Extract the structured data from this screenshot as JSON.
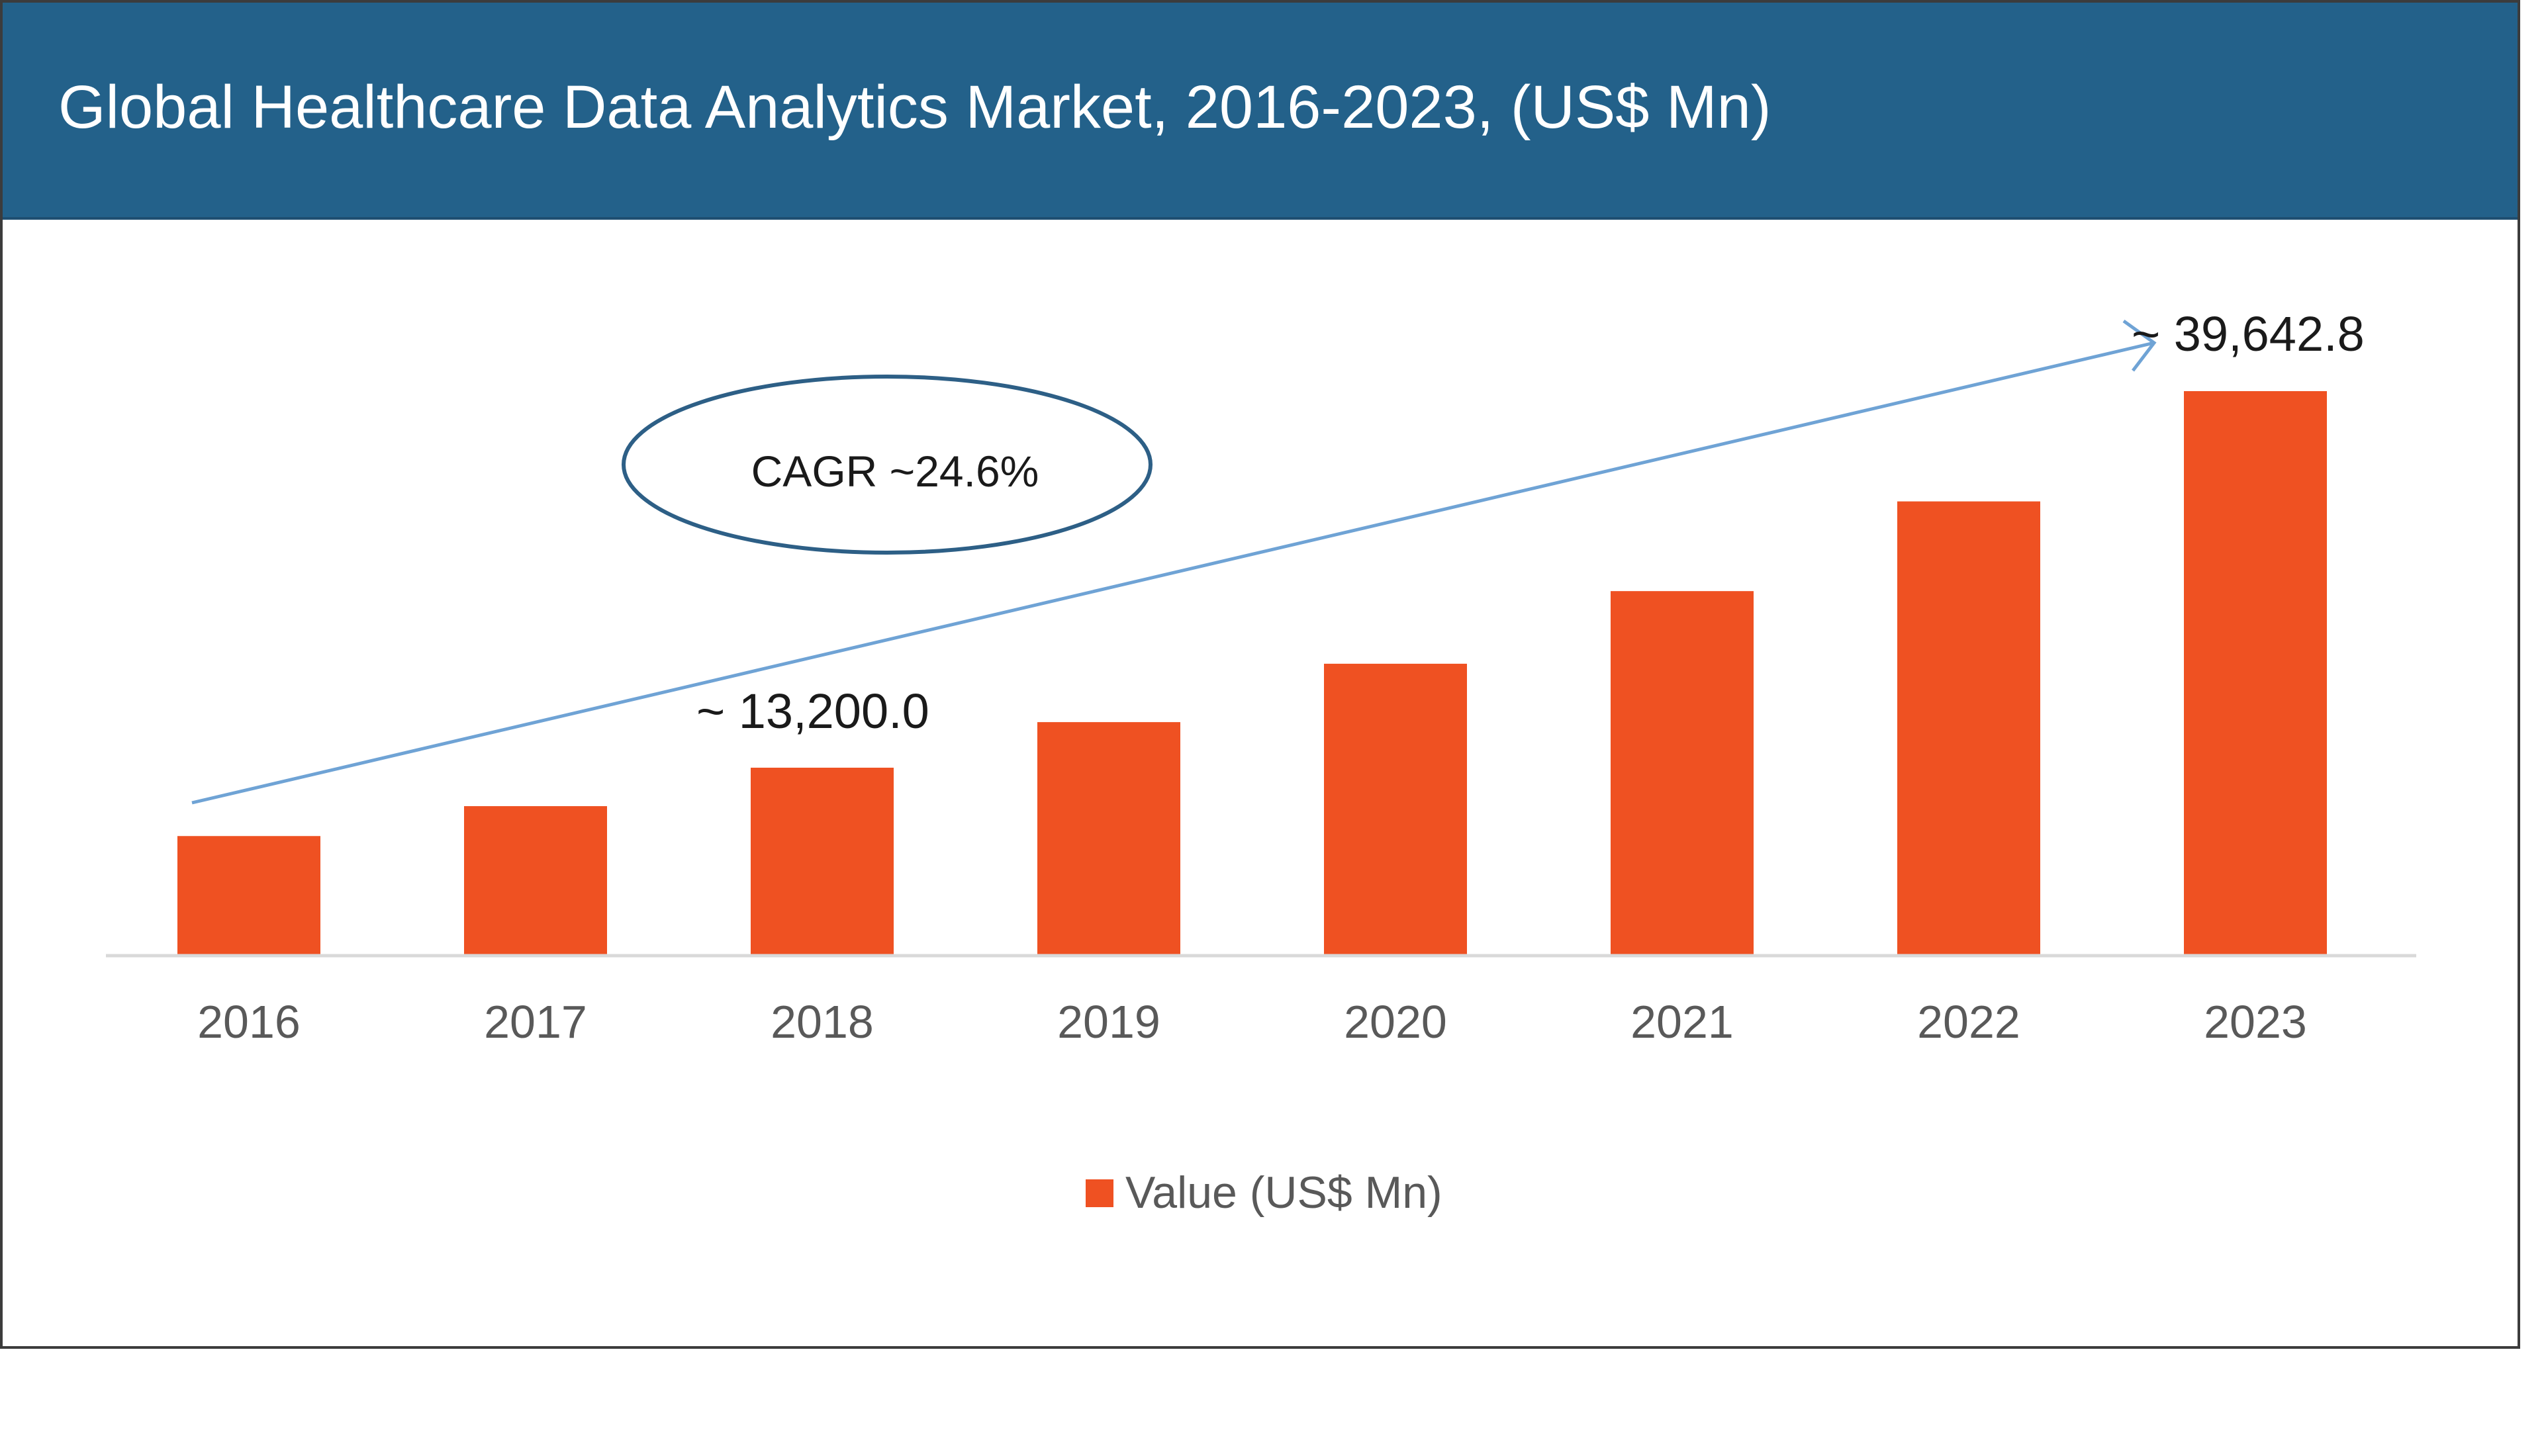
{
  "header": {
    "title": "Global Healthcare Data Analytics Market, 2016-2023, (US$ Mn)"
  },
  "colors": {
    "header_bg": "#23618a",
    "bar": "#ef5122",
    "trend_arrow": "#6fa3d5",
    "ellipse": "#2d5f86",
    "axis": "#d9d9d9",
    "tick_text": "#595959"
  },
  "chart_data": {
    "type": "bar",
    "title": "Global Healthcare Data Analytics Market, 2016-2023, (US$ Mn)",
    "categories": [
      "2016",
      "2017",
      "2018",
      "2019",
      "2020",
      "2021",
      "2022",
      "2023"
    ],
    "series": [
      {
        "name": "Value (US$ Mn)",
        "values": [
          8400,
          10500,
          13200,
          16400,
          20500,
          25600,
          31900,
          39642.8
        ]
      }
    ],
    "ylim": [
      0,
      40000
    ],
    "grid": false,
    "legend": "bottom-center",
    "annotations": {
      "cagr": "CAGR ~24.6%",
      "label_2018": "~ 13,200.0",
      "label_2023": "~ 39,642.8"
    }
  }
}
